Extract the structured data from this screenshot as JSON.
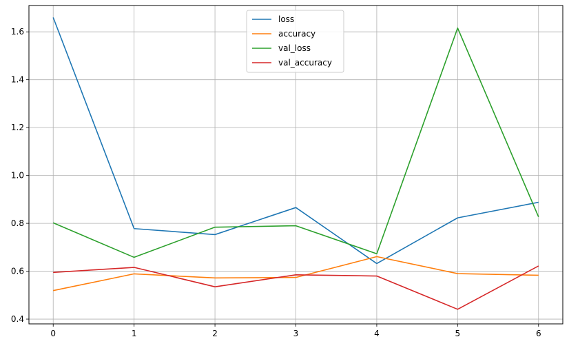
{
  "chart_data": {
    "type": "line",
    "title": "",
    "xlabel": "",
    "ylabel": "",
    "x": [
      0,
      1,
      2,
      3,
      4,
      5,
      6
    ],
    "xlim": [
      -0.3,
      6.3
    ],
    "ylim": [
      0.38,
      1.71
    ],
    "x_ticks": [
      0,
      1,
      2,
      3,
      4,
      5,
      6
    ],
    "y_ticks": [
      0.4,
      0.6,
      0.8,
      1.0,
      1.2,
      1.4,
      1.6
    ],
    "x_tick_labels": [
      "0",
      "1",
      "2",
      "3",
      "4",
      "5",
      "6"
    ],
    "y_tick_labels": [
      "0.4",
      "0.6",
      "0.8",
      "1.0",
      "1.2",
      "1.4",
      "1.6"
    ],
    "grid": true,
    "legend_position": "upper-center",
    "series": [
      {
        "name": "loss",
        "color": "#1f77b4",
        "values": [
          1.66,
          0.778,
          0.753,
          0.866,
          0.632,
          0.823,
          0.888
        ]
      },
      {
        "name": "accuracy",
        "color": "#ff7f0e",
        "values": [
          0.519,
          0.589,
          0.572,
          0.574,
          0.661,
          0.59,
          0.583
        ]
      },
      {
        "name": "val_loss",
        "color": "#2ca02c",
        "values": [
          0.802,
          0.658,
          0.784,
          0.79,
          0.673,
          1.616,
          0.827
        ]
      },
      {
        "name": "val_accuracy",
        "color": "#d62728",
        "values": [
          0.595,
          0.616,
          0.535,
          0.585,
          0.58,
          0.441,
          0.622
        ]
      }
    ]
  }
}
